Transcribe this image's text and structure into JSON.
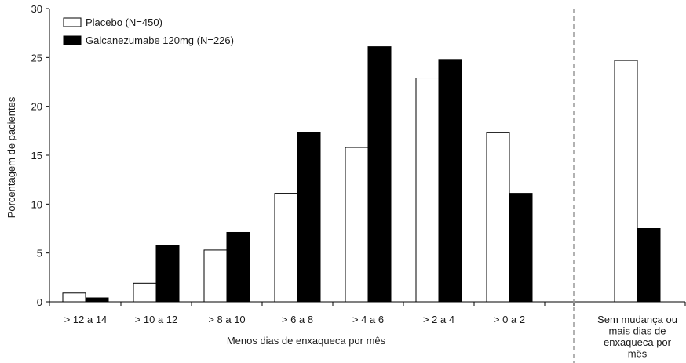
{
  "chart_data": {
    "type": "bar",
    "title": "",
    "xlabel": "Menos dias de enxaqueca por mês",
    "ylabel": "Porcentagem de pacientes",
    "ylim": [
      0,
      30
    ],
    "yticks": [
      0,
      5,
      10,
      15,
      20,
      25,
      30
    ],
    "grid": false,
    "legend_position": "top-left",
    "categories": [
      "> 12 a 14",
      "> 10 a 12",
      "> 8 a 10",
      "> 6 a 8",
      "> 4 a 6",
      "> 2 a 4",
      "> 0 a 2",
      "Sem mudança ou mais dias de enxaqueca por mês"
    ],
    "category_label_lines": [
      [
        "> 12 a 14"
      ],
      [
        "> 10 a 12"
      ],
      [
        "> 8 a 10"
      ],
      [
        "> 6 a 8"
      ],
      [
        "> 4 a 6"
      ],
      [
        "> 2 a 4"
      ],
      [
        "> 0 a 2"
      ],
      [
        "Sem mudança ou",
        "mais dias de",
        "enxaqueca por",
        "mês"
      ]
    ],
    "series": [
      {
        "name": "Placebo (N=450)",
        "color": "#ffffff",
        "edge_color": "#000000",
        "values": [
          0.9,
          1.9,
          5.3,
          11.1,
          15.8,
          22.9,
          17.3,
          24.7
        ]
      },
      {
        "name": "Galcanezumabe 120mg (N=226)",
        "color": "#000000",
        "edge_color": "#000000",
        "values": [
          0.4,
          5.8,
          7.1,
          17.3,
          26.1,
          24.8,
          11.1,
          7.5
        ]
      }
    ],
    "separator": {
      "style": "dashed",
      "color": "#999999"
    }
  }
}
